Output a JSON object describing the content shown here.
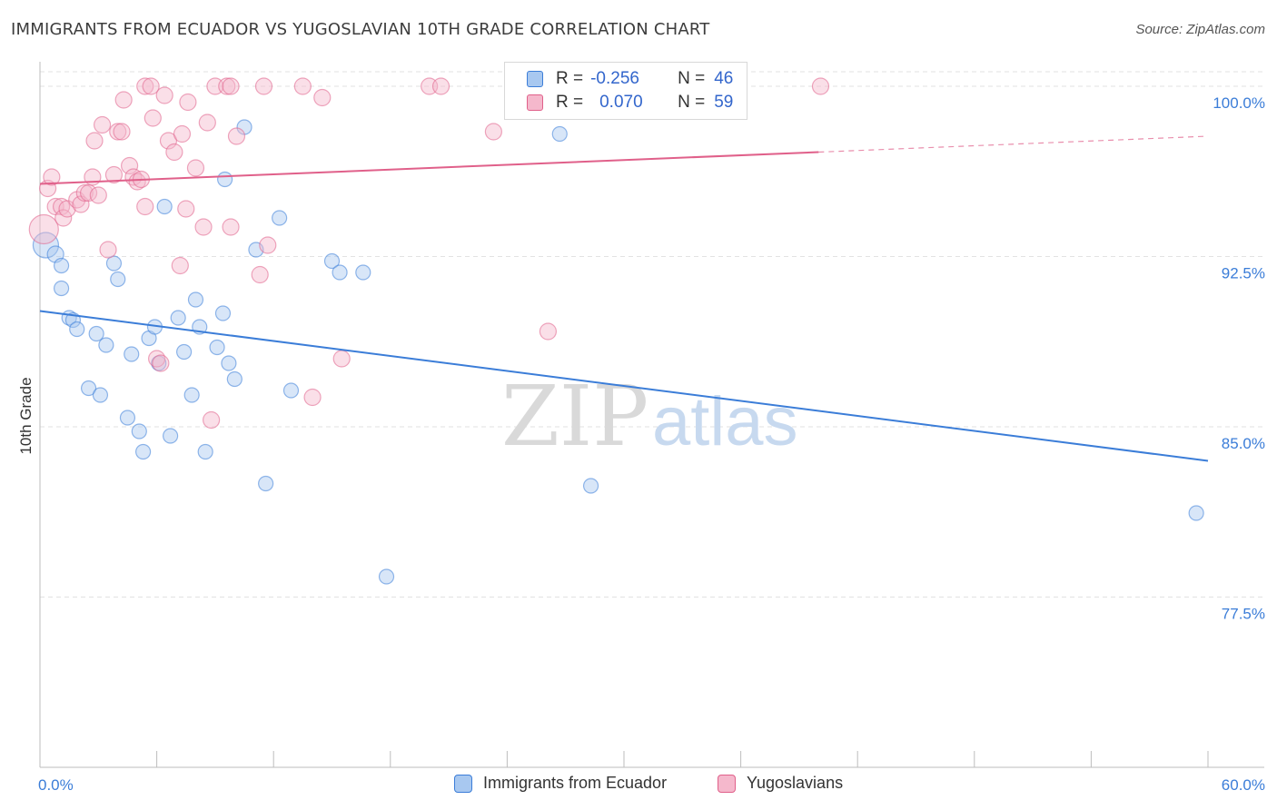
{
  "header": {
    "title": "IMMIGRANTS FROM ECUADOR VS YUGOSLAVIAN 10TH GRADE CORRELATION CHART",
    "source": "Source: ZipAtlas.com"
  },
  "watermark": {
    "zip": "ZIP",
    "atlas": "atlas"
  },
  "legend": {
    "rows": [
      {
        "r_label": "R =",
        "r_value": "-0.256",
        "n_label": "N =",
        "n_value": "46",
        "color": "#a8c8f0"
      },
      {
        "r_label": "R =",
        "r_value": "0.070",
        "n_label": "N =",
        "n_value": "59",
        "color": "#f5b8cc"
      }
    ]
  },
  "chart_data": {
    "type": "scatter",
    "title": "IMMIGRANTS FROM ECUADOR VS YUGOSLAVIAN 10TH GRADE CORRELATION CHART",
    "xlabel": "",
    "ylabel": "10th Grade",
    "xlim": [
      0,
      60
    ],
    "ylim": [
      70.0,
      101.4
    ],
    "x_tick_labels": [
      "0.0%",
      "60.0%"
    ],
    "y_ticks": [
      77.5,
      85.0,
      92.5,
      100.0
    ],
    "y_tick_labels": [
      "77.5%",
      "85.0%",
      "92.5%",
      "100.0%"
    ],
    "grid": true,
    "legend_position": "bottom",
    "series": [
      {
        "name": "Immigrants from Ecuador",
        "color": "#3b7dd8",
        "fill": "#a8c8f0",
        "trend": {
          "x": [
            0,
            60
          ],
          "y": [
            90.1,
            83.5
          ],
          "dashed_from": null
        },
        "points": [
          [
            0.3,
            93.0,
            14
          ],
          [
            0.8,
            92.6,
            9
          ],
          [
            1.1,
            92.1,
            8
          ],
          [
            1.1,
            91.1,
            8
          ],
          [
            1.5,
            89.8,
            8
          ],
          [
            1.7,
            89.7,
            8
          ],
          [
            1.9,
            89.3,
            8
          ],
          [
            2.5,
            86.7,
            8
          ],
          [
            3.1,
            86.4,
            8
          ],
          [
            2.9,
            89.1,
            8
          ],
          [
            3.4,
            88.6,
            8
          ],
          [
            3.8,
            92.2,
            8
          ],
          [
            4.0,
            91.5,
            8
          ],
          [
            4.5,
            85.4,
            8
          ],
          [
            4.7,
            88.2,
            8
          ],
          [
            5.1,
            84.8,
            8
          ],
          [
            5.3,
            83.9,
            8
          ],
          [
            5.6,
            88.9,
            8
          ],
          [
            5.9,
            89.4,
            8
          ],
          [
            6.1,
            87.8,
            8
          ],
          [
            6.4,
            94.7,
            8
          ],
          [
            6.7,
            84.6,
            8
          ],
          [
            7.1,
            89.8,
            8
          ],
          [
            7.4,
            88.3,
            8
          ],
          [
            7.8,
            86.4,
            8
          ],
          [
            8.0,
            90.6,
            8
          ],
          [
            8.2,
            89.4,
            8
          ],
          [
            8.5,
            83.9,
            8
          ],
          [
            9.1,
            88.5,
            8
          ],
          [
            9.4,
            90.0,
            8
          ],
          [
            9.7,
            87.8,
            8
          ],
          [
            10.0,
            87.1,
            8
          ],
          [
            9.5,
            95.9,
            8
          ],
          [
            10.5,
            98.2,
            8
          ],
          [
            11.1,
            92.8,
            8
          ],
          [
            11.6,
            82.5,
            8
          ],
          [
            12.3,
            94.2,
            8
          ],
          [
            12.9,
            86.6,
            8
          ],
          [
            15.0,
            92.3,
            8
          ],
          [
            15.4,
            91.8,
            8
          ],
          [
            16.6,
            91.8,
            8
          ],
          [
            17.8,
            78.4,
            8
          ],
          [
            26.7,
            97.9,
            8
          ],
          [
            28.3,
            82.4,
            8
          ],
          [
            59.4,
            81.2,
            8
          ]
        ]
      },
      {
        "name": "Yugoslavians",
        "color": "#e0608a",
        "fill": "#f5b8cc",
        "trend": {
          "x": [
            0,
            60
          ],
          "y": [
            95.7,
            97.8
          ],
          "dashed_from": 40
        },
        "points": [
          [
            0.2,
            93.7,
            16
          ],
          [
            0.4,
            95.5,
            9
          ],
          [
            0.6,
            96.0,
            9
          ],
          [
            0.8,
            94.7,
            9
          ],
          [
            1.1,
            94.7,
            9
          ],
          [
            1.2,
            94.2,
            9
          ],
          [
            1.4,
            94.6,
            9
          ],
          [
            1.9,
            95.0,
            9
          ],
          [
            2.1,
            94.8,
            9
          ],
          [
            2.3,
            95.3,
            9
          ],
          [
            2.5,
            95.3,
            9
          ],
          [
            2.7,
            96.0,
            9
          ],
          [
            3.0,
            95.2,
            9
          ],
          [
            2.8,
            97.6,
            9
          ],
          [
            3.2,
            98.3,
            9
          ],
          [
            3.5,
            92.8,
            9
          ],
          [
            3.8,
            96.1,
            9
          ],
          [
            4.0,
            98.0,
            9
          ],
          [
            4.2,
            98.0,
            9
          ],
          [
            4.3,
            99.4,
            9
          ],
          [
            4.6,
            96.5,
            9
          ],
          [
            4.8,
            96.0,
            9
          ],
          [
            5.0,
            95.8,
            9
          ],
          [
            5.2,
            95.9,
            9
          ],
          [
            5.4,
            94.7,
            9
          ],
          [
            5.4,
            100.0,
            9
          ],
          [
            5.7,
            100.0,
            9
          ],
          [
            5.8,
            98.6,
            9
          ],
          [
            6.0,
            88.0,
            9
          ],
          [
            6.2,
            87.8,
            9
          ],
          [
            6.4,
            99.6,
            9
          ],
          [
            6.6,
            97.6,
            9
          ],
          [
            6.9,
            97.1,
            9
          ],
          [
            7.2,
            92.1,
            9
          ],
          [
            7.3,
            97.9,
            9
          ],
          [
            7.5,
            94.6,
            9
          ],
          [
            7.6,
            99.3,
            9
          ],
          [
            8.0,
            96.4,
            9
          ],
          [
            8.4,
            93.8,
            9
          ],
          [
            8.6,
            98.4,
            9
          ],
          [
            8.8,
            85.3,
            9
          ],
          [
            9.0,
            100.0,
            9
          ],
          [
            9.6,
            100.0,
            9
          ],
          [
            9.8,
            100.0,
            9
          ],
          [
            9.8,
            93.8,
            9
          ],
          [
            10.1,
            97.8,
            9
          ],
          [
            11.3,
            91.7,
            9
          ],
          [
            11.5,
            100.0,
            9
          ],
          [
            11.7,
            93.0,
            9
          ],
          [
            13.5,
            100.0,
            9
          ],
          [
            14.0,
            86.3,
            9
          ],
          [
            14.5,
            99.5,
            9
          ],
          [
            15.5,
            88.0,
            9
          ],
          [
            20.0,
            100.0,
            9
          ],
          [
            20.6,
            100.0,
            9
          ],
          [
            23.3,
            98.0,
            9
          ],
          [
            26.1,
            89.2,
            9
          ],
          [
            40.1,
            100.0,
            9
          ]
        ]
      }
    ]
  }
}
